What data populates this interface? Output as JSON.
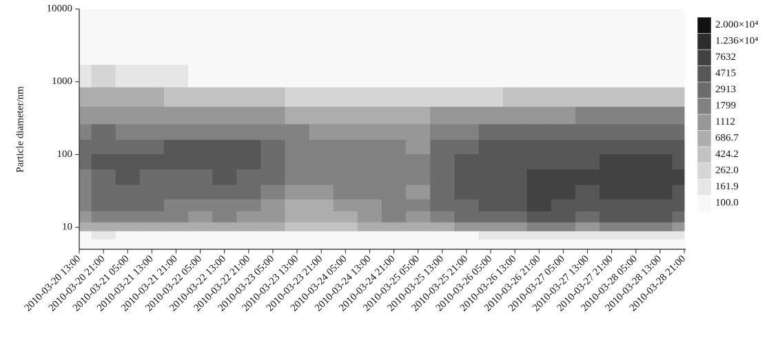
{
  "chart_data": {
    "type": "contour",
    "ylabel": "Particle diameter/nm",
    "x": [
      "2010-03-20 13:00",
      "2010-03-20 21:00",
      "2010-03-21 05:00",
      "2010-03-21 13:00",
      "2010-03-21 21:00",
      "2010-03-22 05:00",
      "2010-03-22 13:00",
      "2010-03-22 21:00",
      "2010-03-23 05:00",
      "2010-03-23 13:00",
      "2010-03-23 21:00",
      "2010-03-24 05:00",
      "2010-03-24 13:00",
      "2010-03-24 21:00",
      "2010-03-25 05:00",
      "2010-03-25 13:00",
      "2010-03-25 21:00",
      "2010-03-26 05:00",
      "2010-03-26 13:00",
      "2010-03-26 21:00",
      "2010-03-27 05:00",
      "2010-03-27 13:00",
      "2010-03-27 21:00",
      "2010-03-28 05:00",
      "2010-03-28 13:00",
      "2010-03-28 21:00"
    ],
    "y": [
      6,
      8,
      10,
      14,
      20,
      30,
      50,
      80,
      130,
      200,
      350,
      600,
      1200,
      2500
    ],
    "z": [
      [
        100,
        100,
        100,
        100,
        100,
        100,
        100,
        100,
        100,
        100,
        100,
        100,
        100,
        100,
        100,
        100,
        100,
        100,
        100,
        100,
        100,
        100,
        100,
        100,
        100,
        100
      ],
      [
        150,
        180,
        160,
        140,
        130,
        120,
        130,
        120,
        110,
        105,
        100,
        110,
        115,
        130,
        120,
        140,
        160,
        170,
        180,
        200,
        190,
        180,
        190,
        200,
        190,
        180
      ],
      [
        700,
        1000,
        1100,
        1000,
        900,
        800,
        900,
        800,
        700,
        600,
        500,
        650,
        800,
        1000,
        900,
        1000,
        1300,
        1500,
        1700,
        2000,
        1800,
        1700,
        1800,
        2000,
        1800,
        1600
      ],
      [
        1500,
        2200,
        2500,
        2200,
        1800,
        1500,
        1800,
        1500,
        1200,
        900,
        800,
        1100,
        1400,
        2000,
        1500,
        2300,
        3200,
        3800,
        4500,
        5500,
        5000,
        4600,
        5000,
        5500,
        5000,
        4500
      ],
      [
        1800,
        3200,
        3600,
        3000,
        2400,
        2000,
        2400,
        2000,
        1500,
        1000,
        900,
        1400,
        1700,
        2500,
        1800,
        3000,
        4500,
        5200,
        6200,
        8000,
        7000,
        6500,
        7000,
        7500,
        7000,
        6500
      ],
      [
        2000,
        4000,
        4200,
        3600,
        3200,
        3000,
        3400,
        3000,
        2200,
        1400,
        1200,
        1800,
        2000,
        2200,
        1600,
        3600,
        5500,
        6000,
        7000,
        8500,
        7800,
        7500,
        8000,
        8500,
        8000,
        7500
      ],
      [
        2500,
        4500,
        4800,
        4500,
        4600,
        4400,
        4800,
        4500,
        3500,
        2200,
        1800,
        2600,
        2500,
        2200,
        1800,
        3800,
        6000,
        6500,
        7000,
        7800,
        8000,
        8200,
        8500,
        9000,
        8600,
        8000
      ],
      [
        3000,
        5000,
        5500,
        5200,
        5600,
        5500,
        6000,
        5600,
        4200,
        2600,
        2000,
        2800,
        2600,
        2200,
        1800,
        3500,
        5200,
        6000,
        6500,
        7000,
        7200,
        7500,
        8000,
        8500,
        8000,
        7500
      ],
      [
        3500,
        4000,
        4500,
        4500,
        5000,
        4800,
        5000,
        4800,
        4000,
        2500,
        2200,
        2600,
        2400,
        2000,
        1700,
        3200,
        4000,
        4800,
        5200,
        5500,
        5500,
        5800,
        6000,
        6500,
        6200,
        5800
      ],
      [
        2500,
        3000,
        2900,
        2800,
        2800,
        2700,
        2700,
        2600,
        2400,
        1800,
        1600,
        1700,
        1600,
        1400,
        1300,
        2200,
        2800,
        3000,
        3200,
        3300,
        3500,
        3600,
        3800,
        3900,
        3800,
        3600
      ],
      [
        1500,
        1700,
        1600,
        1500,
        1500,
        1400,
        1400,
        1300,
        1200,
        900,
        800,
        800,
        800,
        700,
        700,
        1200,
        1400,
        1500,
        1600,
        1700,
        1700,
        1800,
        1900,
        1900,
        1900,
        1800
      ],
      [
        700,
        800,
        750,
        700,
        650,
        600,
        500,
        500,
        450,
        350,
        300,
        300,
        300,
        300,
        300,
        350,
        400,
        400,
        450,
        450,
        450,
        450,
        450,
        500,
        450,
        450
      ],
      [
        200,
        300,
        250,
        200,
        180,
        120,
        100,
        100,
        100,
        100,
        100,
        100,
        100,
        100,
        100,
        100,
        100,
        100,
        100,
        100,
        100,
        100,
        100,
        100,
        100,
        100
      ],
      [
        100,
        130,
        110,
        100,
        100,
        100,
        100,
        100,
        100,
        100,
        100,
        100,
        100,
        100,
        100,
        100,
        100,
        100,
        100,
        100,
        100,
        100,
        100,
        100,
        100,
        100
      ]
    ],
    "ylim": [
      5,
      10000
    ],
    "yticks": [
      10,
      100,
      1000,
      10000
    ],
    "log_y": true,
    "levels": [
      {
        "value": 100,
        "label": "100.0"
      },
      161.9,
      {
        "value": 262,
        "label": "262.0"
      },
      424.2,
      686.7,
      1112,
      1799,
      2913,
      4715,
      7632,
      {
        "value": 12360,
        "label": "1.236×10⁴"
      },
      {
        "value": 20000,
        "label": "2.000×10⁴"
      }
    ],
    "colors": [
      "#f8f8f8",
      "#e6e6e6",
      "#d6d6d6",
      "#c2c2c2",
      "#adadad",
      "#979797",
      "#828282",
      "#6c6c6c",
      "#575757",
      "#424242",
      "#2c2c2c",
      "#111111"
    ]
  }
}
